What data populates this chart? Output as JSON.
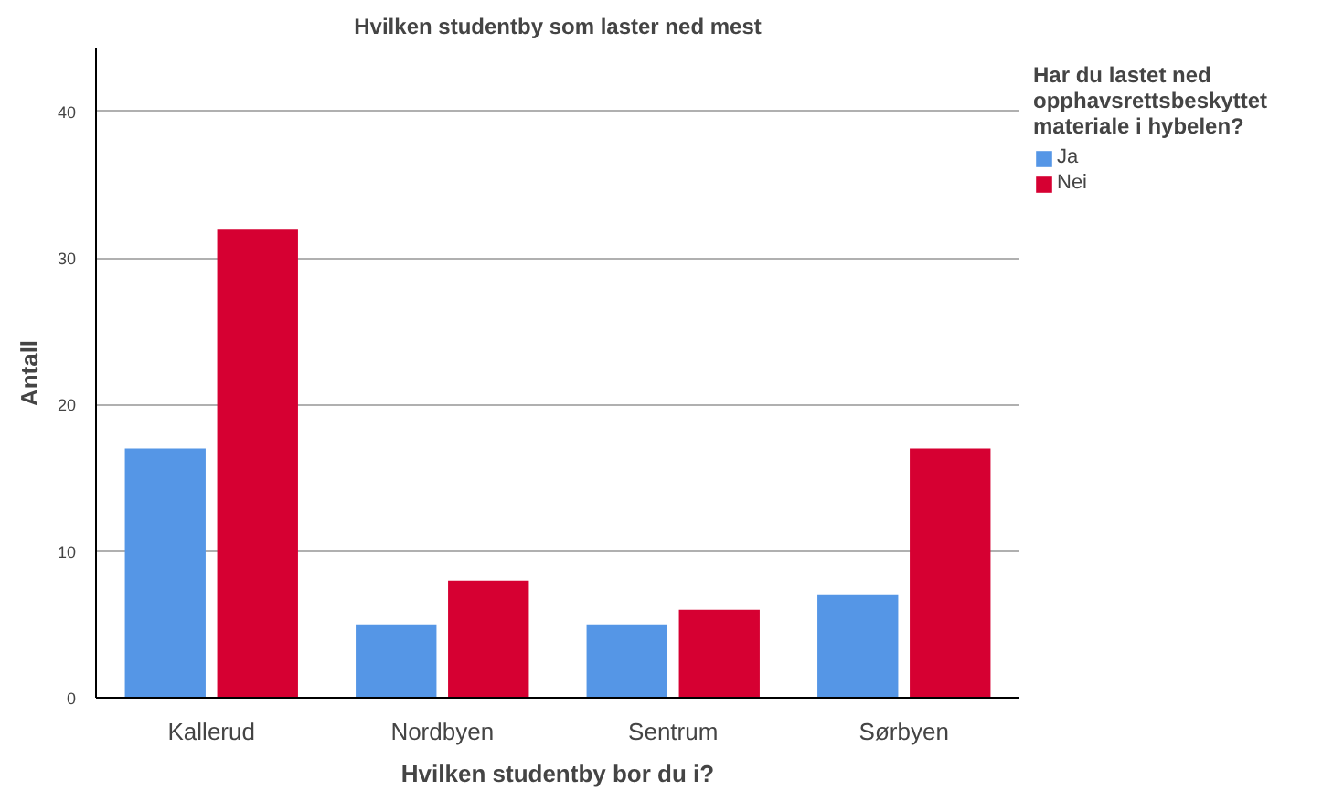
{
  "chart_data": {
    "type": "bar",
    "title": "Hvilken studentby som laster ned mest",
    "xlabel": "Hvilken studentby bor du i?",
    "ylabel": "Antall",
    "legend_title": "Har du lastet ned opphavsrettsbeskyttet materiale i hybelen?",
    "categories": [
      "Kallerud",
      "Nordbyen",
      "Sentrum",
      "Sørbyen"
    ],
    "series": [
      {
        "name": "Ja",
        "color": "#5596e6",
        "values": [
          17,
          5,
          5,
          7
        ]
      },
      {
        "name": "Nei",
        "color": "#d60032",
        "values": [
          32,
          8,
          6,
          17
        ]
      }
    ],
    "ylim": [
      0,
      44.3
    ],
    "yticks": [
      0,
      10,
      20,
      30,
      40
    ],
    "grid": "y",
    "legend": "top right"
  }
}
